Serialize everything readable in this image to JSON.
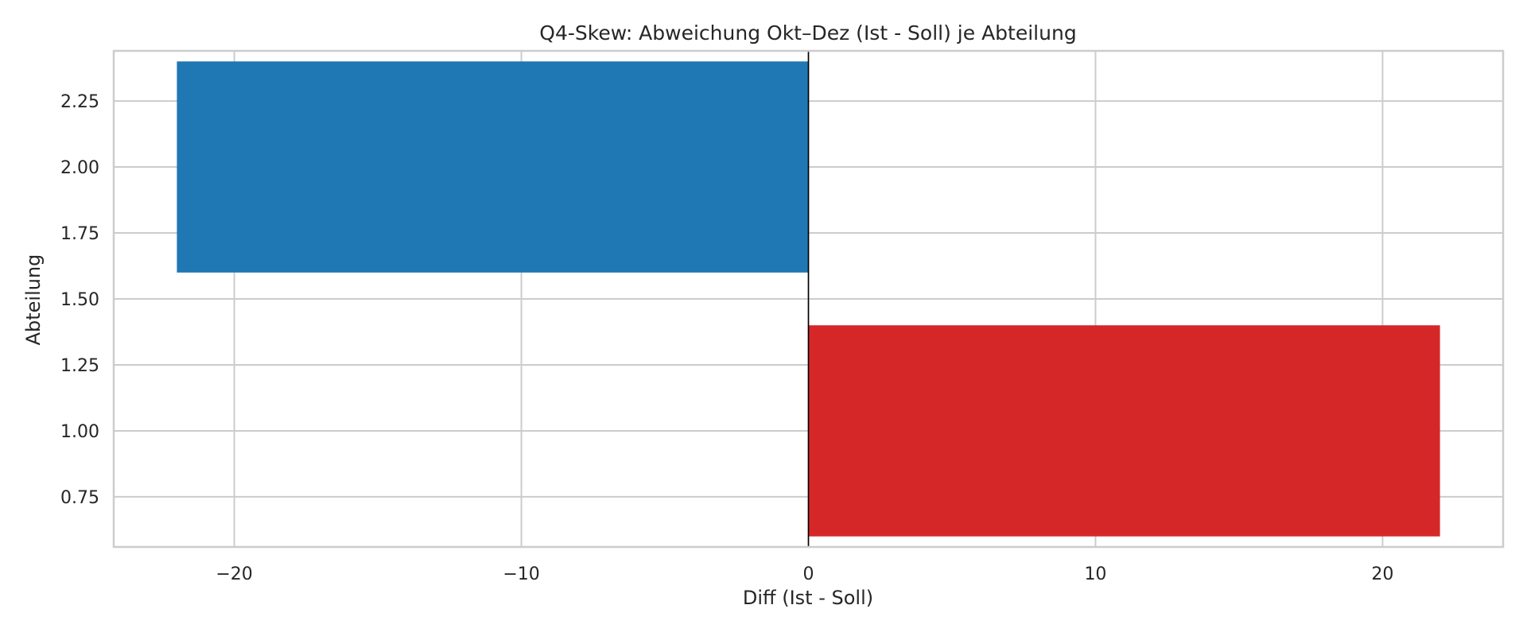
{
  "chart_data": {
    "type": "bar",
    "orientation": "horizontal",
    "title": "Q4-Skew: Abweichung Okt–Dez (Ist - Soll) je Abteilung",
    "xlabel": "Diff (Ist - Soll)",
    "ylabel": "Abteilung",
    "grid": true,
    "xlim": [
      -24.2,
      24.2
    ],
    "ylim": [
      0.56,
      2.44
    ],
    "xticks": [
      -20,
      -10,
      0,
      10,
      20
    ],
    "xtick_labels": [
      "−20",
      "−10",
      "0",
      "10",
      "20"
    ],
    "yticks": [
      0.75,
      1.0,
      1.25,
      1.5,
      1.75,
      2.0,
      2.25
    ],
    "ytick_labels": [
      "0.75",
      "1.00",
      "1.25",
      "1.50",
      "1.75",
      "2.00",
      "2.25"
    ],
    "bars": [
      {
        "y": 1,
        "value": 22,
        "height": 0.8,
        "color": "#d62728"
      },
      {
        "y": 2,
        "value": -22,
        "height": 0.8,
        "color": "#1f77b4"
      }
    ],
    "zero_line_color": "#000000",
    "grid_color": "#cccccc",
    "frame_color": "#cccccc"
  }
}
